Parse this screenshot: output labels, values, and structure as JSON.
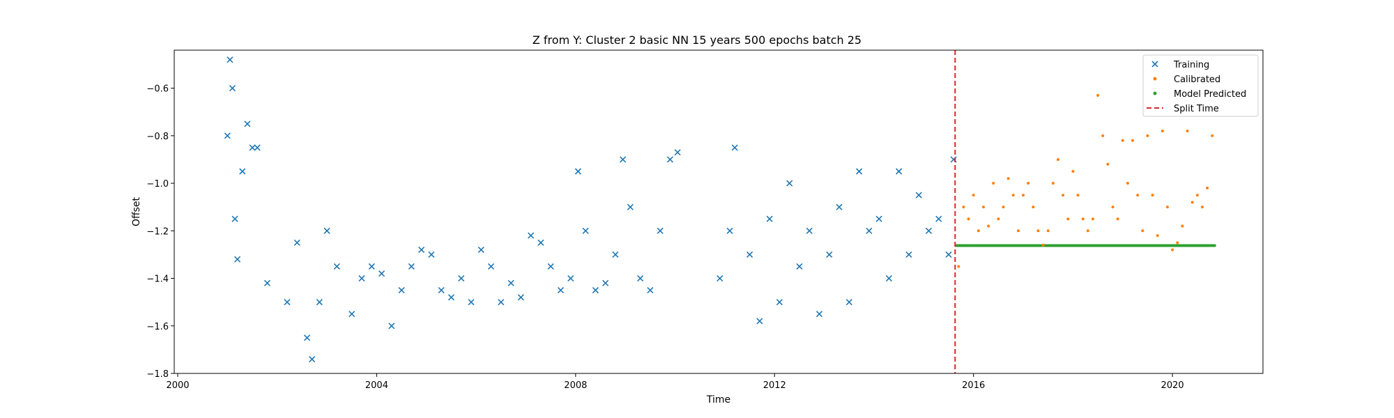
{
  "chart_data": {
    "type": "scatter",
    "title": "Z from Y: Cluster 2 basic NN 15 years 500 epochs batch 25",
    "xlabel": "Time",
    "ylabel": "Offset",
    "xlim": [
      1999.93,
      2021.82
    ],
    "ylim": [
      -1.8,
      -0.44
    ],
    "xticks": [
      2000,
      2004,
      2008,
      2012,
      2016,
      2020
    ],
    "xtick_labels": [
      "2000",
      "2004",
      "2008",
      "2012",
      "2016",
      "2020"
    ],
    "yticks": [
      -1.8,
      -1.6,
      -1.4,
      -1.2,
      -1.0,
      -0.8,
      -0.6
    ],
    "ytick_labels": [
      "−1.8",
      "−1.6",
      "−1.4",
      "−1.2",
      "−1.0",
      "−0.8",
      "−0.6"
    ],
    "grid": false,
    "legend_position": "top-right",
    "split_time": 2015.63,
    "series": [
      {
        "name": "Training",
        "marker": "x",
        "color": "#1f77b4",
        "x": [
          2001.0,
          2001.05,
          2001.1,
          2001.15,
          2001.2,
          2001.3,
          2001.4,
          2001.5,
          2001.6,
          2001.8,
          2002.2,
          2002.4,
          2002.6,
          2002.7,
          2002.85,
          2003.0,
          2003.2,
          2003.5,
          2003.7,
          2003.9,
          2004.1,
          2004.3,
          2004.5,
          2004.7,
          2004.9,
          2005.1,
          2005.3,
          2005.5,
          2005.7,
          2005.9,
          2006.1,
          2006.3,
          2006.5,
          2006.7,
          2006.9,
          2007.1,
          2007.3,
          2007.5,
          2007.7,
          2007.9,
          2008.05,
          2008.2,
          2008.4,
          2008.6,
          2008.8,
          2008.95,
          2009.1,
          2009.3,
          2009.5,
          2009.7,
          2009.9,
          2010.05,
          2010.9,
          2011.1,
          2011.2,
          2011.5,
          2011.7,
          2011.9,
          2012.1,
          2012.3,
          2012.5,
          2012.7,
          2012.9,
          2013.1,
          2013.3,
          2013.5,
          2013.7,
          2013.9,
          2014.1,
          2014.3,
          2014.5,
          2014.7,
          2014.9,
          2015.1,
          2015.3,
          2015.5,
          2015.6
        ],
        "y": [
          -0.8,
          -0.48,
          -0.6,
          -1.15,
          -1.32,
          -0.95,
          -0.75,
          -0.85,
          -0.85,
          -1.42,
          -1.5,
          -1.25,
          -1.65,
          -1.74,
          -1.5,
          -1.2,
          -1.35,
          -1.55,
          -1.4,
          -1.35,
          -1.38,
          -1.6,
          -1.45,
          -1.35,
          -1.28,
          -1.3,
          -1.45,
          -1.48,
          -1.4,
          -1.5,
          -1.28,
          -1.35,
          -1.5,
          -1.42,
          -1.48,
          -1.22,
          -1.25,
          -1.35,
          -1.45,
          -1.4,
          -0.95,
          -1.2,
          -1.45,
          -1.42,
          -1.3,
          -0.9,
          -1.1,
          -1.4,
          -1.45,
          -1.2,
          -0.9,
          -0.87,
          -1.4,
          -1.2,
          -0.85,
          -1.3,
          -1.58,
          -1.15,
          -1.5,
          -1.0,
          -1.35,
          -1.2,
          -1.55,
          -1.3,
          -1.1,
          -1.5,
          -0.95,
          -1.2,
          -1.15,
          -1.4,
          -0.95,
          -1.3,
          -1.05,
          -1.2,
          -1.15,
          -1.3,
          -0.9
        ]
      },
      {
        "name": "Calibrated",
        "marker": "dot",
        "color": "#ff7f0e",
        "x": [
          2015.7,
          2015.8,
          2015.9,
          2016.0,
          2016.1,
          2016.2,
          2016.3,
          2016.4,
          2016.5,
          2016.6,
          2016.7,
          2016.8,
          2016.9,
          2017.0,
          2017.1,
          2017.2,
          2017.3,
          2017.4,
          2017.5,
          2017.6,
          2017.7,
          2017.8,
          2017.9,
          2018.0,
          2018.1,
          2018.2,
          2018.3,
          2018.4,
          2018.5,
          2018.6,
          2018.7,
          2018.8,
          2018.9,
          2019.0,
          2019.1,
          2019.2,
          2019.3,
          2019.4,
          2019.5,
          2019.6,
          2019.7,
          2019.8,
          2019.9,
          2020.0,
          2020.1,
          2020.2,
          2020.3,
          2020.4,
          2020.5,
          2020.6,
          2020.7,
          2020.8
        ],
        "y": [
          -1.35,
          -1.1,
          -1.15,
          -1.05,
          -1.2,
          -1.1,
          -1.18,
          -1.0,
          -1.15,
          -1.1,
          -0.98,
          -1.05,
          -1.2,
          -1.05,
          -1.0,
          -1.1,
          -1.2,
          -1.26,
          -1.2,
          -1.0,
          -0.9,
          -1.05,
          -1.15,
          -0.95,
          -1.05,
          -1.15,
          -1.2,
          -1.15,
          -0.63,
          -0.8,
          -0.92,
          -1.1,
          -1.15,
          -0.82,
          -1.0,
          -0.82,
          -1.05,
          -1.2,
          -0.8,
          -1.05,
          -1.22,
          -0.78,
          -1.1,
          -1.28,
          -1.25,
          -1.18,
          -0.78,
          -1.08,
          -1.05,
          -1.1,
          -1.02,
          -0.8
        ]
      },
      {
        "name": "Model Predicted",
        "marker": "dot",
        "color": "#2ca02c",
        "x_start": 2015.65,
        "x_end": 2020.85,
        "value": -1.262
      }
    ],
    "legend": [
      {
        "label": "Training",
        "marker": "x",
        "color": "#1f77b4"
      },
      {
        "label": "Calibrated",
        "marker": "dot",
        "color": "#ff7f0e"
      },
      {
        "label": "Model Predicted",
        "marker": "dot",
        "color": "#2ca02c"
      },
      {
        "label": "Split Time",
        "marker": "dashed-line",
        "color": "#d62728"
      }
    ]
  }
}
